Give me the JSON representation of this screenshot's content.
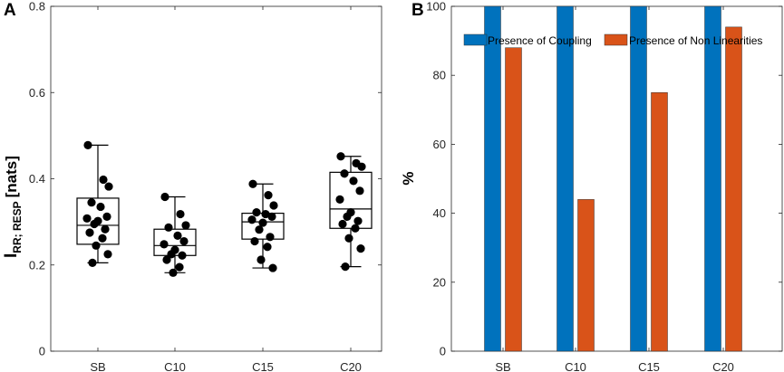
{
  "chart_data": [
    {
      "type": "box",
      "panel_label": "A",
      "ylabel_main": "I",
      "ylabel_sub": "RR; RESP",
      "ylabel_unit": "[nats]",
      "ylim": [
        0,
        0.8
      ],
      "yticks": [
        "0",
        "0.2",
        "0.4",
        "0.6",
        "0.8"
      ],
      "categories": [
        "SB",
        "C10",
        "C15",
        "C20"
      ],
      "boxes": [
        {
          "name": "SB",
          "min": 0.205,
          "q1": 0.248,
          "median": 0.292,
          "q3": 0.355,
          "max": 0.478,
          "points": [
            0.478,
            0.398,
            0.382,
            0.345,
            0.335,
            0.312,
            0.308,
            0.302,
            0.295,
            0.283,
            0.275,
            0.262,
            0.245,
            0.225,
            0.205
          ]
        },
        {
          "name": "C10",
          "min": 0.182,
          "q1": 0.222,
          "median": 0.245,
          "q3": 0.283,
          "max": 0.358,
          "points": [
            0.358,
            0.318,
            0.292,
            0.287,
            0.268,
            0.255,
            0.248,
            0.235,
            0.225,
            0.222,
            0.212,
            0.195,
            0.182
          ]
        },
        {
          "name": "C15",
          "min": 0.193,
          "q1": 0.26,
          "median": 0.3,
          "q3": 0.32,
          "max": 0.388,
          "points": [
            0.388,
            0.362,
            0.338,
            0.322,
            0.318,
            0.312,
            0.305,
            0.298,
            0.282,
            0.265,
            0.255,
            0.242,
            0.212,
            0.193
          ]
        },
        {
          "name": "C20",
          "min": 0.196,
          "q1": 0.285,
          "median": 0.33,
          "q3": 0.415,
          "max": 0.452,
          "points": [
            0.452,
            0.436,
            0.428,
            0.412,
            0.395,
            0.372,
            0.352,
            0.322,
            0.312,
            0.302,
            0.295,
            0.285,
            0.262,
            0.238,
            0.196
          ]
        }
      ]
    },
    {
      "type": "bar",
      "panel_label": "B",
      "ylabel": "%",
      "ylim": [
        0,
        100
      ],
      "yticks": [
        "0",
        "20",
        "40",
        "60",
        "80",
        "100"
      ],
      "categories": [
        "SB",
        "C10",
        "C15",
        "C20"
      ],
      "series": [
        {
          "name": "Presence of Coupling",
          "color": "#0072BD",
          "values": [
            100,
            100,
            100,
            100
          ]
        },
        {
          "name": "Presence of Non Linearities",
          "color": "#D95319",
          "values": [
            88,
            44,
            75,
            94
          ]
        }
      ]
    }
  ]
}
